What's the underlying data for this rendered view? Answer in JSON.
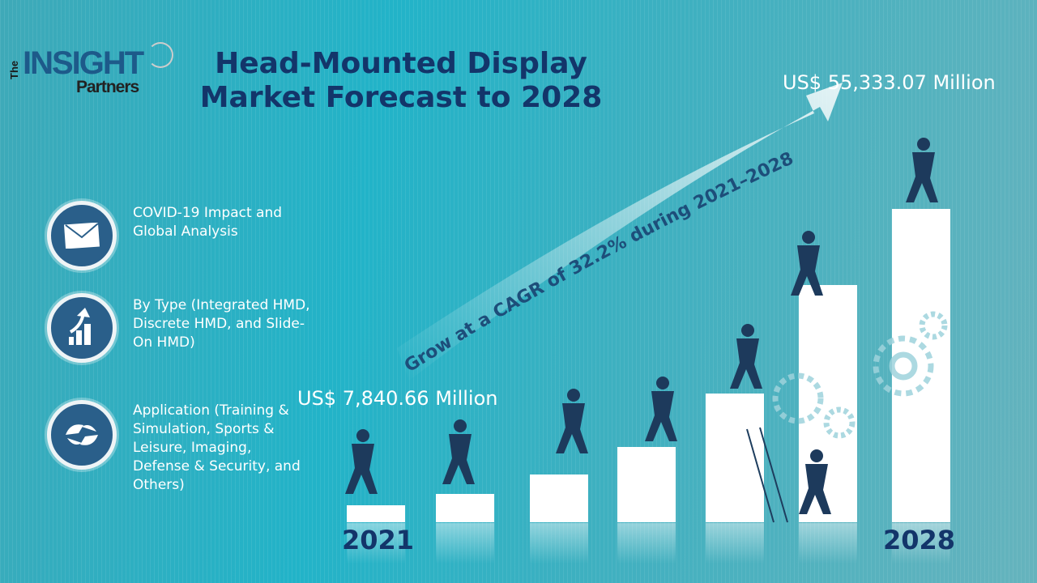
{
  "logo": {
    "the": "The",
    "insight": "INSIGHT",
    "partners": "Partners"
  },
  "title": {
    "line1": "Head-Mounted Display",
    "line2": "Market Forecast to 2028"
  },
  "segments": [
    {
      "icon": "envelope-icon",
      "text": "COVID-19 Impact and Global Analysis"
    },
    {
      "icon": "growth-chart-icon",
      "text": "By Type (Integrated HMD, Discrete HMD, and Slide-On HMD)"
    },
    {
      "icon": "handshake-icon",
      "text": "Application (Training & Simulation, Sports & Leisure, Imaging, Defense & Security, and Others)"
    }
  ],
  "start_value": "US$ 7,840.66 Million",
  "end_value": "US$ 55,333.07 Million",
  "cagr_text": "Grow at a CAGR of 32.2% during 2021–2028",
  "start_year": "2021",
  "end_year": "2028",
  "colors": {
    "title": "#13356a",
    "icon_bg": "#2a5f8a",
    "bars": "#ffffff"
  }
}
